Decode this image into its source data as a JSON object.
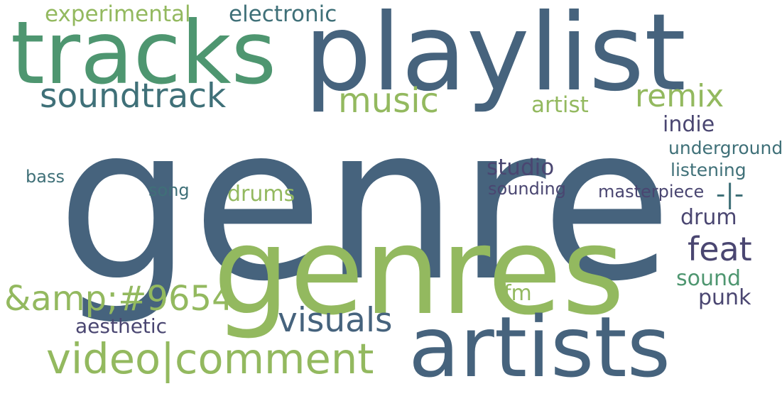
{
  "palette": {
    "slate": "#46637d",
    "lime": "#93b95f",
    "green": "#4e9670",
    "teal": "#3f7078",
    "indigo": "#4a4671"
  },
  "words": [
    {
      "text": "genre",
      "color": "#46637d"
    },
    {
      "text": "playlist",
      "color": "#46637d"
    },
    {
      "text": "tracks",
      "color": "#4e9670"
    },
    {
      "text": "genres",
      "color": "#93b95f"
    },
    {
      "text": "artists",
      "color": "#46637d"
    },
    {
      "text": "video|comment",
      "color": "#93b95f"
    },
    {
      "text": "soundtrack",
      "color": "#3f7078"
    },
    {
      "text": "music",
      "color": "#93b95f"
    },
    {
      "text": "remix",
      "color": "#93b95f"
    },
    {
      "text": "visuals",
      "color": "#46637d"
    },
    {
      "text": "&amp;#9654",
      "color": "#93b95f"
    },
    {
      "text": "feat",
      "color": "#4a4671"
    },
    {
      "text": "experimental",
      "color": "#93b95f"
    },
    {
      "text": "electronic",
      "color": "#3f7078"
    },
    {
      "text": "artist",
      "color": "#93b95f"
    },
    {
      "text": "indie",
      "color": "#4a4671"
    },
    {
      "text": "underground",
      "color": "#3f7078"
    },
    {
      "text": "listening",
      "color": "#3f7078"
    },
    {
      "text": "studio",
      "color": "#4a4671"
    },
    {
      "text": "sounding",
      "color": "#4a4671"
    },
    {
      "text": "masterpiece",
      "color": "#4a4671"
    },
    {
      "text": "-|-",
      "color": "#3f7078"
    },
    {
      "text": "drums",
      "color": "#93b95f"
    },
    {
      "text": "drum",
      "color": "#4a4671"
    },
    {
      "text": "bass",
      "color": "#3f7078"
    },
    {
      "text": "song",
      "color": "#3f7078"
    },
    {
      "text": "sound",
      "color": "#4e9670"
    },
    {
      "text": "punk",
      "color": "#4a4671"
    },
    {
      "text": "fm",
      "color": "#93b95f"
    },
    {
      "text": "aesthetic",
      "color": "#4a4671"
    }
  ]
}
